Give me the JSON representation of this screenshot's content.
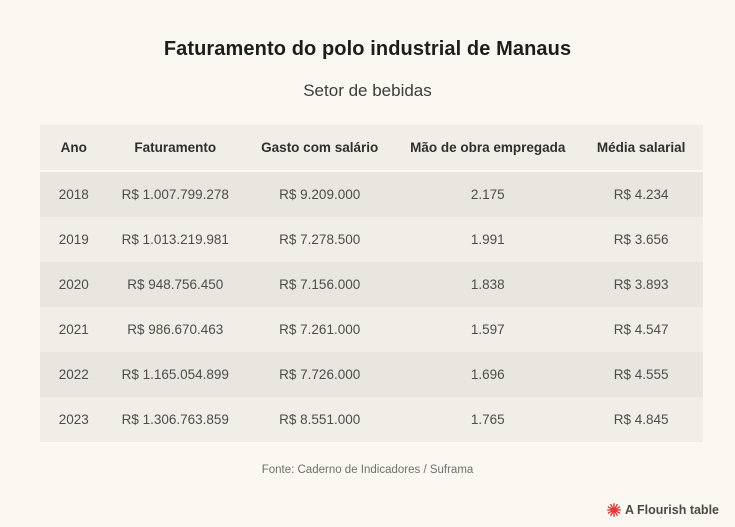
{
  "chart_data": {
    "type": "table",
    "title": "Faturamento do polo industrial de Manaus",
    "subtitle": "Setor de bebidas",
    "columns": [
      "Ano",
      "Faturamento",
      "Gasto com salário",
      "Mão de obra empregada",
      "Média salarial"
    ],
    "rows": [
      [
        "2018",
        "R$ 1.007.799.278",
        "R$ 9.209.000",
        "2.175",
        "R$ 4.234"
      ],
      [
        "2019",
        "R$ 1.013.219.981",
        "R$ 7.278.500",
        "1.991",
        "R$ 3.656"
      ],
      [
        "2020",
        "R$ 948.756.450",
        "R$ 7.156.000",
        "1.838",
        "R$ 3.893"
      ],
      [
        "2021",
        "R$ 986.670.463",
        "R$ 7.261.000",
        "1.597",
        "R$ 4.547"
      ],
      [
        "2022",
        "R$ 1.165.054.899",
        "R$ 7.726.000",
        "1.696",
        "R$ 4.555"
      ],
      [
        "2023",
        "R$ 1.306.763.859",
        "R$ 8.551.000",
        "1.765",
        "R$ 4.845"
      ]
    ],
    "source": "Fonte: Caderno de Indicadores / Suframa",
    "legend_position": "none",
    "grid": false
  },
  "credit": {
    "label": "A Flourish table",
    "icon": "flourish-logo-icon",
    "icon_color": "#e03a36"
  },
  "colors": {
    "page_background": "#fbf8f2",
    "header_row": "#f1eee8",
    "row_dark": "#e9e6e0",
    "row_light": "#f1eee8",
    "title_text": "#1d1d1d",
    "cell_text": "#4d4d4d",
    "source_text": "#6f6f6f",
    "credit_accent": "#e03a36"
  }
}
